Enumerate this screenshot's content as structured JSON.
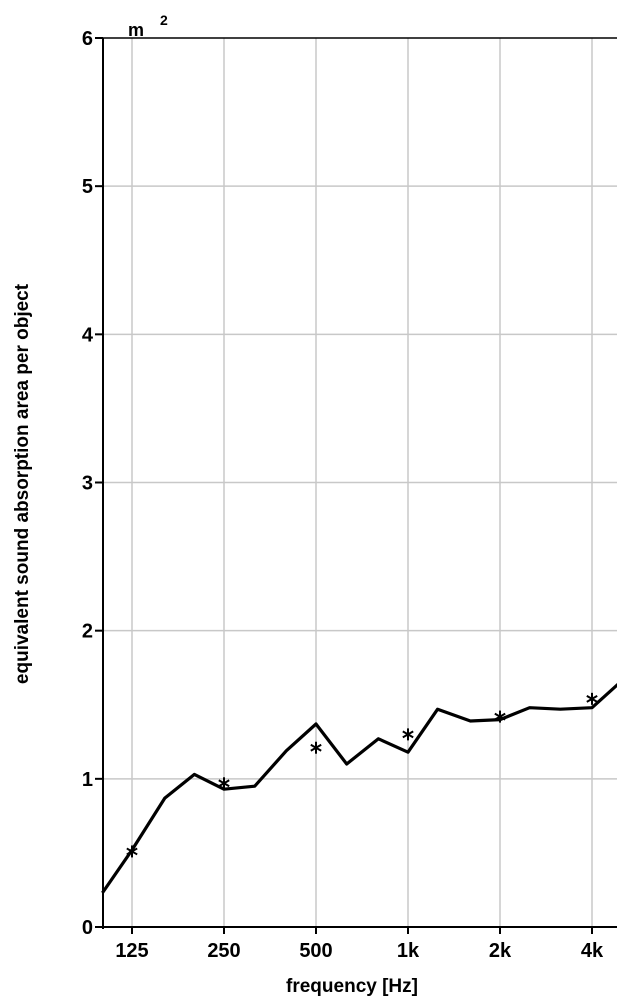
{
  "chart_data": {
    "type": "line",
    "ylabel": "equivalent sound absorption area per object",
    "xlabel": "frequency [Hz]",
    "y_unit": "m",
    "y_unit_exponent": "2",
    "ylim": [
      0,
      6
    ],
    "y_ticks": [
      "0",
      "1",
      "2",
      "3",
      "4",
      "5",
      "6"
    ],
    "x_scale": "log2",
    "x_ticks": [
      {
        "label": "125",
        "value": 125
      },
      {
        "label": "250",
        "value": 250
      },
      {
        "label": "500",
        "value": 500
      },
      {
        "label": "1k",
        "value": 1000
      },
      {
        "label": "2k",
        "value": 2000
      },
      {
        "label": "4k",
        "value": 4000
      }
    ],
    "grid": true,
    "line_series": {
      "x": [
        100,
        125,
        160,
        200,
        250,
        315,
        400,
        500,
        630,
        800,
        1000,
        1250,
        1600,
        2000,
        2500,
        3150,
        4000,
        5000
      ],
      "y": [
        0.23,
        0.52,
        0.87,
        1.03,
        0.93,
        0.95,
        1.19,
        1.37,
        1.1,
        1.27,
        1.18,
        1.47,
        1.39,
        1.4,
        1.48,
        1.47,
        1.48,
        1.66
      ]
    },
    "octave_points": {
      "x": [
        125,
        250,
        500,
        1000,
        2000,
        4000
      ],
      "y": [
        0.51,
        0.97,
        1.21,
        1.3,
        1.42,
        1.54
      ]
    }
  }
}
